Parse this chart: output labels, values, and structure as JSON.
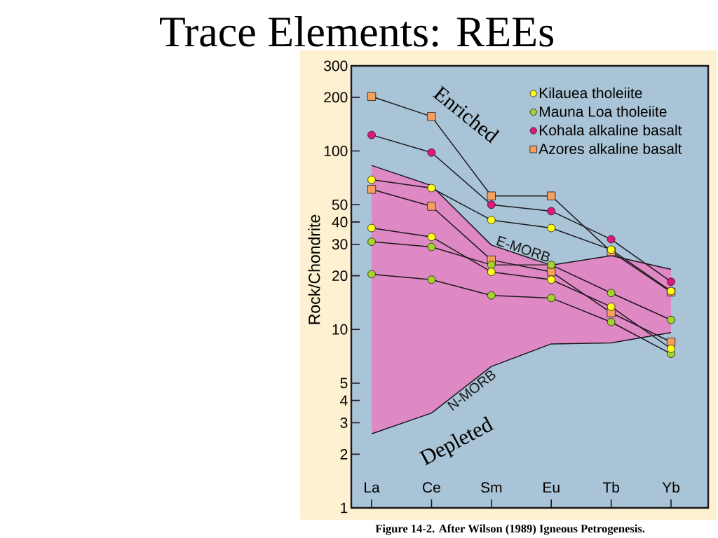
{
  "chart_data": {
    "type": "line",
    "title": "Trace Elements: REEs",
    "ylabel": "Rock/Chondrite",
    "annotations": [
      "Enriched",
      "Depleted",
      "Figure 14-2. After Wilson (1989) Igneous Petrogenesis."
    ],
    "categories": [
      "La",
      "Ce",
      "Sm",
      "Eu",
      "Tb",
      "Yb"
    ],
    "ylim": [
      1,
      300
    ],
    "yticks": [
      1,
      2,
      3,
      4,
      5,
      10,
      20,
      30,
      40,
      50,
      100,
      200,
      300
    ],
    "log": "y",
    "legend": "top right",
    "marker": "circle",
    "series": [
      {
        "name": "E-MORB",
        "color": "#1c181c",
        "marker": "none",
        "values": [
          83,
          64,
          29.7,
          22.9,
          25.9,
          21.7
        ],
        "lower": [
          2.6,
          3.4,
          6.2,
          8.3,
          8.4,
          9.6
        ],
        "upper": [
          83,
          64,
          29.7,
          22.9,
          25.9,
          21.7
        ]
      },
      {
        "name": "N-MORB",
        "color": "#1c181c",
        "marker": "none",
        "values": [
          2.6,
          3.4,
          6.2,
          8.3,
          8.4,
          9.6
        ]
      },
      {
        "name": "Kilauea tholeiite",
        "color": "#ffff1a",
        "values": [
          69,
          62,
          41,
          37,
          28,
          16.4
        ]
      },
      {
        "color": "#ffff1a",
        "values": [
          37,
          33,
          21,
          19,
          13.4,
          7.8
        ]
      },
      {
        "name": "Mauna Loa tholeiite",
        "color": "#a5d22d",
        "values": [
          31,
          29,
          23,
          23,
          16,
          11.3
        ]
      },
      {
        "color": "#a5d22d",
        "values": [
          20.4,
          19,
          15.5,
          15,
          11,
          7.3
        ]
      },
      {
        "name": "Kohala alkaline basalt",
        "color": "#e0187c",
        "values": [
          123,
          98,
          50,
          46,
          32,
          18.5
        ]
      },
      {
        "name": "Azores alkaline basalt",
        "color": "#f5a05f",
        "marker": "square",
        "values": [
          202,
          156,
          56,
          56,
          27.3,
          16.2
        ]
      },
      {
        "color": "#f5a05f",
        "marker": "square",
        "values": [
          61,
          49,
          24.5,
          21,
          12.4,
          8.5
        ]
      }
    ]
  }
}
